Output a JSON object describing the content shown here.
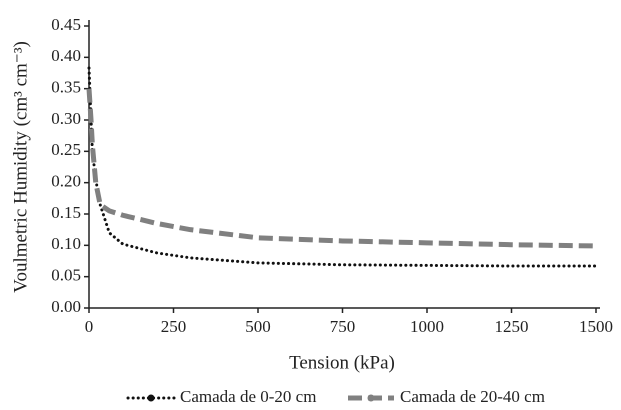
{
  "chart_data": {
    "type": "line",
    "xlabel": "Tension (kPa)",
    "ylabel": "Voulmetric Humidity (cm³ cm⁻³)",
    "x": [
      0,
      6,
      10,
      20,
      33,
      60,
      100,
      200,
      300,
      500,
      750,
      1000,
      1250,
      1500
    ],
    "series": [
      {
        "name": "Camada de 0-20 cm",
        "color": "#111111",
        "line_style": "dotted",
        "values": [
          0.383,
          0.3,
          0.25,
          0.205,
          0.165,
          0.12,
          0.102,
          0.088,
          0.08,
          0.072,
          0.069,
          0.068,
          0.067,
          0.067
        ]
      },
      {
        "name": "Camada de 20-40 cm",
        "color": "#808080",
        "line_style": "dashed",
        "values": [
          0.35,
          0.3,
          0.26,
          0.2,
          0.165,
          0.155,
          0.148,
          0.135,
          0.125,
          0.112,
          0.107,
          0.104,
          0.101,
          0.099
        ]
      }
    ],
    "xlim": [
      0,
      1500
    ],
    "xticks": [
      0,
      250,
      500,
      750,
      1000,
      1250,
      1500
    ],
    "ylim": [
      0,
      0.45
    ],
    "yticks": [
      {
        "value": 0,
        "label": "0.00"
      },
      0.05,
      {
        "value": 0.1,
        "label": "0.10"
      },
      0.15,
      {
        "value": 0.2,
        "label": "0.20"
      },
      0.25,
      {
        "value": 0.3,
        "label": "0.30"
      },
      0.35,
      {
        "value": 0.4,
        "label": "0.40"
      },
      0.45
    ],
    "grid": false,
    "legend": "bottom"
  }
}
